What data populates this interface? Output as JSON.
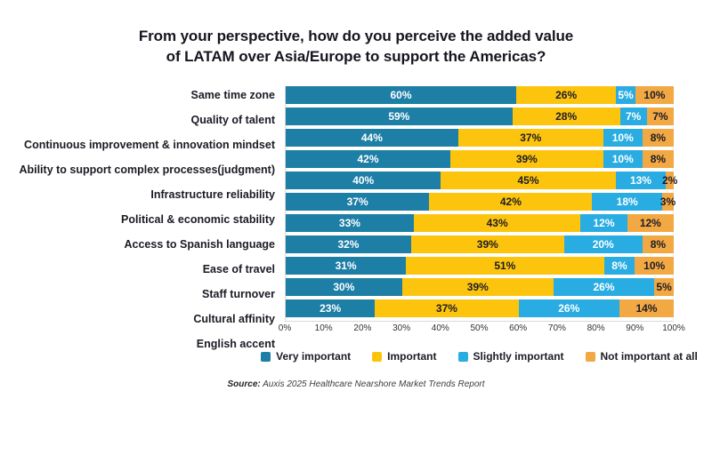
{
  "title": {
    "line1": "From your perspective, how do you perceive the added value",
    "line2": "of LATAM over Asia/Europe to support the Americas?"
  },
  "chart_data": {
    "type": "bar",
    "orientation": "horizontal",
    "stacked": true,
    "title": "From your perspective, how do you perceive the added value of LATAM over Asia/Europe to support the Americas?",
    "categories": [
      "Same time zone",
      "Quality of talent",
      "Continuous improvement & innovation mindset",
      "Ability to support complex processes(judgment)",
      "Infrastructure reliability",
      "Political & economic stability",
      "Access to Spanish language",
      "Ease of travel",
      "Staff turnover",
      "Cultural affinity",
      "English accent"
    ],
    "series": [
      {
        "name": "Very important",
        "color": "#1d7ea6",
        "label_color": "#ffffff",
        "values": [
          60,
          59,
          44,
          42,
          40,
          37,
          33,
          32,
          31,
          30,
          23
        ]
      },
      {
        "name": "Important",
        "color": "#fdc40d",
        "label_color": "#1c1c26",
        "values": [
          26,
          28,
          37,
          39,
          45,
          42,
          43,
          39,
          51,
          39,
          37
        ]
      },
      {
        "name": "Slightly important",
        "color": "#29ace2",
        "label_color": "#ffffff",
        "values": [
          5,
          7,
          10,
          10,
          13,
          18,
          12,
          20,
          8,
          26,
          26
        ]
      },
      {
        "name": "Not important at all",
        "color": "#f2a843",
        "label_color": "#1c1c26",
        "values": [
          10,
          7,
          8,
          8,
          2,
          3,
          12,
          8,
          10,
          5,
          14
        ]
      }
    ],
    "x_ticks": [
      "0%",
      "10%",
      "20%",
      "30%",
      "40%",
      "50%",
      "60%",
      "70%",
      "80%",
      "90%",
      "100%"
    ],
    "xlim": [
      0,
      100
    ],
    "value_suffix": "%",
    "grid": false,
    "legend_position": "bottom"
  },
  "source": {
    "label": "Source:",
    "text": "Auxis 2025 Healthcare Nearshore Market Trends Report"
  }
}
